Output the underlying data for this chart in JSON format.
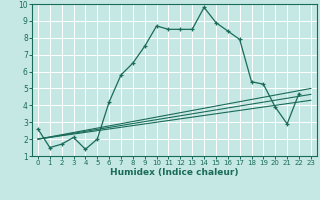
{
  "xlabel": "Humidex (Indice chaleur)",
  "xlim": [
    -0.5,
    23.5
  ],
  "ylim": [
    1,
    10
  ],
  "xticks": [
    0,
    1,
    2,
    3,
    4,
    5,
    6,
    7,
    8,
    9,
    10,
    11,
    12,
    13,
    14,
    15,
    16,
    17,
    18,
    19,
    20,
    21,
    22,
    23
  ],
  "yticks": [
    1,
    2,
    3,
    4,
    5,
    6,
    7,
    8,
    9,
    10
  ],
  "bg_color": "#c5e8e4",
  "line_color": "#1a6b5a",
  "grid_color": "#ffffff",
  "series1_x": [
    0,
    1,
    2,
    3,
    4,
    5,
    6,
    7,
    8,
    9,
    10,
    11,
    12,
    13,
    14,
    15,
    16,
    17,
    18,
    19,
    20,
    21,
    22
  ],
  "series1_y": [
    2.6,
    1.5,
    1.7,
    2.1,
    1.4,
    2.0,
    4.2,
    5.8,
    6.5,
    7.5,
    8.7,
    8.5,
    8.5,
    8.5,
    9.8,
    8.9,
    8.4,
    7.9,
    5.4,
    5.25,
    3.9,
    2.9,
    4.7
  ],
  "series2_x": [
    0,
    23
  ],
  "series2_y": [
    2.0,
    4.3
  ],
  "series3_x": [
    0,
    23
  ],
  "series3_y": [
    2.0,
    5.0
  ],
  "series4_x": [
    0,
    23
  ],
  "series4_y": [
    2.0,
    4.65
  ]
}
